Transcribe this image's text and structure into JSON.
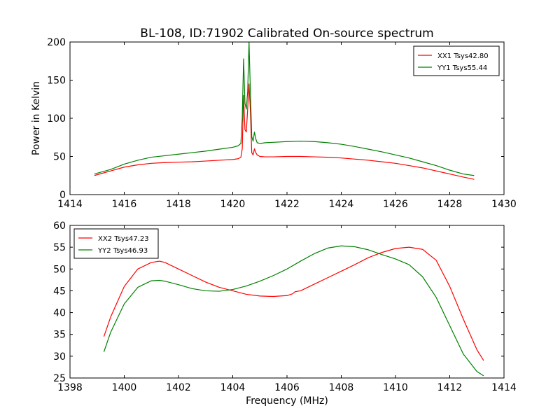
{
  "chart_data": [
    {
      "type": "line",
      "title": "BL-108, ID:71902 Calibrated On-source spectrum",
      "xlabel": "",
      "ylabel": "Power in Kelvin",
      "xlim": [
        1414,
        1430
      ],
      "ylim": [
        0,
        200
      ],
      "xticks": [
        "1414",
        "1416",
        "1418",
        "1420",
        "1422",
        "1424",
        "1426",
        "1428",
        "1430"
      ],
      "yticks": [
        "0",
        "50",
        "100",
        "150",
        "200"
      ],
      "legend_position": "top-right",
      "grid": false,
      "series": [
        {
          "name": "XX1 Tsys42.80",
          "color": "#ff0000",
          "x": [
            1414.9,
            1415.5,
            1416.0,
            1416.5,
            1417.0,
            1417.5,
            1418.0,
            1418.5,
            1419.0,
            1419.5,
            1420.0,
            1420.2,
            1420.3,
            1420.35,
            1420.4,
            1420.45,
            1420.5,
            1420.55,
            1420.6,
            1420.65,
            1420.7,
            1420.75,
            1420.8,
            1420.85,
            1420.9,
            1421.0,
            1421.2,
            1421.5,
            1422.0,
            1422.5,
            1423.0,
            1423.5,
            1424.0,
            1424.5,
            1425.0,
            1425.5,
            1426.0,
            1426.5,
            1427.0,
            1427.5,
            1428.0,
            1428.5,
            1428.9
          ],
          "y": [
            25,
            31,
            36,
            39,
            41,
            42,
            42.5,
            43,
            44,
            45,
            46,
            47,
            49,
            60,
            130,
            85,
            82,
            112,
            145,
            110,
            55,
            52,
            60,
            55,
            52,
            50,
            49.5,
            49.5,
            50,
            50,
            49.5,
            49,
            48,
            46.5,
            45,
            43,
            41,
            38,
            35,
            31,
            27,
            23,
            20
          ]
        },
        {
          "name": "YY1 Tsys55.44",
          "color": "#008000",
          "x": [
            1414.9,
            1415.5,
            1416.0,
            1416.5,
            1417.0,
            1417.5,
            1418.0,
            1418.5,
            1419.0,
            1419.5,
            1420.0,
            1420.2,
            1420.3,
            1420.35,
            1420.4,
            1420.45,
            1420.5,
            1420.55,
            1420.6,
            1420.65,
            1420.7,
            1420.75,
            1420.8,
            1420.85,
            1420.9,
            1421.0,
            1421.2,
            1421.5,
            1422.0,
            1422.5,
            1423.0,
            1423.5,
            1424.0,
            1424.5,
            1425.0,
            1425.5,
            1426.0,
            1426.5,
            1427.0,
            1427.5,
            1428.0,
            1428.5,
            1428.9
          ],
          "y": [
            27,
            33,
            40,
            45,
            49,
            51,
            53,
            55,
            57,
            59.5,
            62,
            64,
            67,
            100,
            178,
            120,
            112,
            135,
            200,
            135,
            76,
            70,
            82,
            73,
            68,
            67,
            68,
            68.5,
            69.5,
            70,
            69.5,
            68,
            66,
            63,
            59.5,
            56,
            52,
            48,
            43,
            38,
            32,
            27,
            25
          ]
        }
      ]
    },
    {
      "type": "line",
      "title": "",
      "xlabel": "Frequency (MHz)",
      "ylabel": "",
      "xlim": [
        1398,
        1414
      ],
      "ylim": [
        25,
        60
      ],
      "xticks": [
        "1398",
        "1400",
        "1402",
        "1404",
        "1406",
        "1408",
        "1410",
        "1412",
        "1414"
      ],
      "yticks": [
        "25",
        "30",
        "35",
        "40",
        "45",
        "50",
        "55",
        "60"
      ],
      "legend_position": "top-left",
      "grid": false,
      "series": [
        {
          "name": "XX2 Tsys47.23",
          "color": "#ff0000",
          "x": [
            1399.25,
            1399.5,
            1400.0,
            1400.5,
            1401.0,
            1401.3,
            1401.5,
            1402.0,
            1402.5,
            1403.0,
            1403.5,
            1404.0,
            1404.5,
            1405.0,
            1405.5,
            1406.0,
            1406.2,
            1406.3,
            1406.5,
            1407.0,
            1407.5,
            1408.0,
            1408.5,
            1409.0,
            1409.5,
            1410.0,
            1410.5,
            1411.0,
            1411.5,
            1412.0,
            1412.5,
            1413.0,
            1413.25
          ],
          "y": [
            34.5,
            39,
            46,
            50,
            51.5,
            51.8,
            51.5,
            50,
            48.5,
            47,
            45.8,
            45,
            44.2,
            43.8,
            43.7,
            43.9,
            44.3,
            44.8,
            45,
            46.5,
            48,
            49.5,
            51,
            52.6,
            53.8,
            54.7,
            55,
            54.5,
            52,
            46,
            38.5,
            31.5,
            29
          ]
        },
        {
          "name": "YY2 Tsys46.93",
          "color": "#008000",
          "x": [
            1399.25,
            1399.5,
            1400.0,
            1400.5,
            1401.0,
            1401.3,
            1401.5,
            1402.0,
            1402.5,
            1403.0,
            1403.5,
            1404.0,
            1404.5,
            1405.0,
            1405.5,
            1406.0,
            1406.5,
            1407.0,
            1407.5,
            1408.0,
            1408.5,
            1409.0,
            1409.5,
            1410.0,
            1410.5,
            1411.0,
            1411.5,
            1412.0,
            1412.5,
            1413.0,
            1413.25
          ],
          "y": [
            31,
            35.5,
            42,
            45.8,
            47.3,
            47.4,
            47.2,
            46.4,
            45.5,
            45,
            44.9,
            45.3,
            46.1,
            47.2,
            48.5,
            50,
            51.8,
            53.5,
            54.8,
            55.3,
            55.1,
            54.4,
            53.3,
            52.3,
            51,
            48.2,
            43.5,
            37,
            30.5,
            26.5,
            25.5
          ]
        }
      ]
    }
  ]
}
